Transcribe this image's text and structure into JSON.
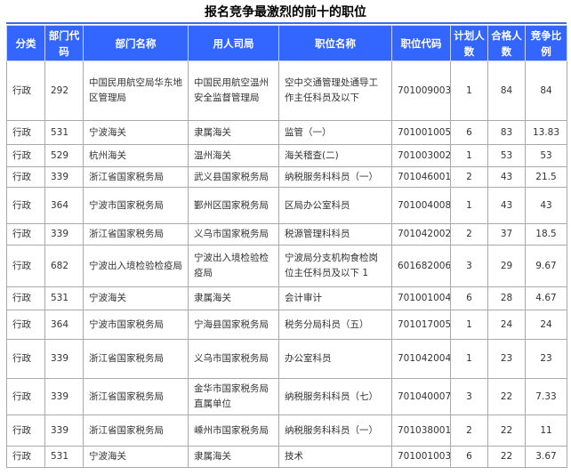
{
  "title": "报名竞争最激烈的前十的职位",
  "colors": {
    "header_bg": "#3366ff",
    "header_text": "#ffffff",
    "border": "#a9a9a9"
  },
  "columns": [
    "分类",
    "部门代码",
    "部门名称",
    "用人司局",
    "职位名称",
    "职位代码",
    "计划人数",
    "合格人数",
    "竞争比例"
  ],
  "rows": [
    [
      "行政",
      "292",
      "中国民用航空局华东地区管理局",
      "中国民用航空温州安全监督管理局",
      "空中交通管理处通导工作主任科员及以下",
      "701009003",
      "1",
      "84",
      "84"
    ],
    [
      "行政",
      "531",
      "宁波海关",
      "隶属海关",
      "监管（一）",
      "701001005",
      "6",
      "83",
      "13.83"
    ],
    [
      "行政",
      "529",
      "杭州海关",
      "温州海关",
      "海关稽查(二)",
      "701003002",
      "1",
      "53",
      "53"
    ],
    [
      "行政",
      "339",
      "浙江省国家税务局",
      "武义县国家税务局",
      "纳税服务科科员（一）",
      "701046001",
      "2",
      "43",
      "21.5"
    ],
    [
      "行政",
      "364",
      "宁波市国家税务局",
      "鄞州区国家税务局",
      "区局办公室科员",
      "701004008",
      "1",
      "43",
      "43"
    ],
    [
      "行政",
      "339",
      "浙江省国家税务局",
      "义乌市国家税务局",
      "税源管理科科员",
      "701042002",
      "2",
      "37",
      "18.5"
    ],
    [
      "行政",
      "682",
      "宁波出入境检验检疫局",
      "宁波出入境检验检疫局",
      "宁波局分支机构食检岗位主任科员及以下 1",
      "601682006",
      "3",
      "29",
      "9.67"
    ],
    [
      "行政",
      "531",
      "宁波海关",
      "隶属海关",
      "会计审计",
      "701001004",
      "6",
      "28",
      "4.67"
    ],
    [
      "行政",
      "364",
      "宁波市国家税务局",
      "宁海县国家税务局",
      "税务分局科员（五）",
      "701017005",
      "1",
      "24",
      "24"
    ],
    [
      "行政",
      "339",
      "浙江省国家税务局",
      "义乌市国家税务局",
      "办公室科员",
      "701042004",
      "1",
      "23",
      "23"
    ],
    [
      "行政",
      "339",
      "浙江省国家税务局",
      "金华市国家税务局直属单位",
      "纳税服务科科员（七）",
      "701040007",
      "3",
      "22",
      "7.33"
    ],
    [
      "行政",
      "339",
      "浙江省国家税务局",
      "嵊州市国家税务局",
      "纳税服务科科员（一）",
      "701038001",
      "2",
      "22",
      "11"
    ],
    [
      "行政",
      "531",
      "宁波海关",
      "隶属海关",
      "技术",
      "701001003",
      "6",
      "22",
      "3.67"
    ]
  ]
}
